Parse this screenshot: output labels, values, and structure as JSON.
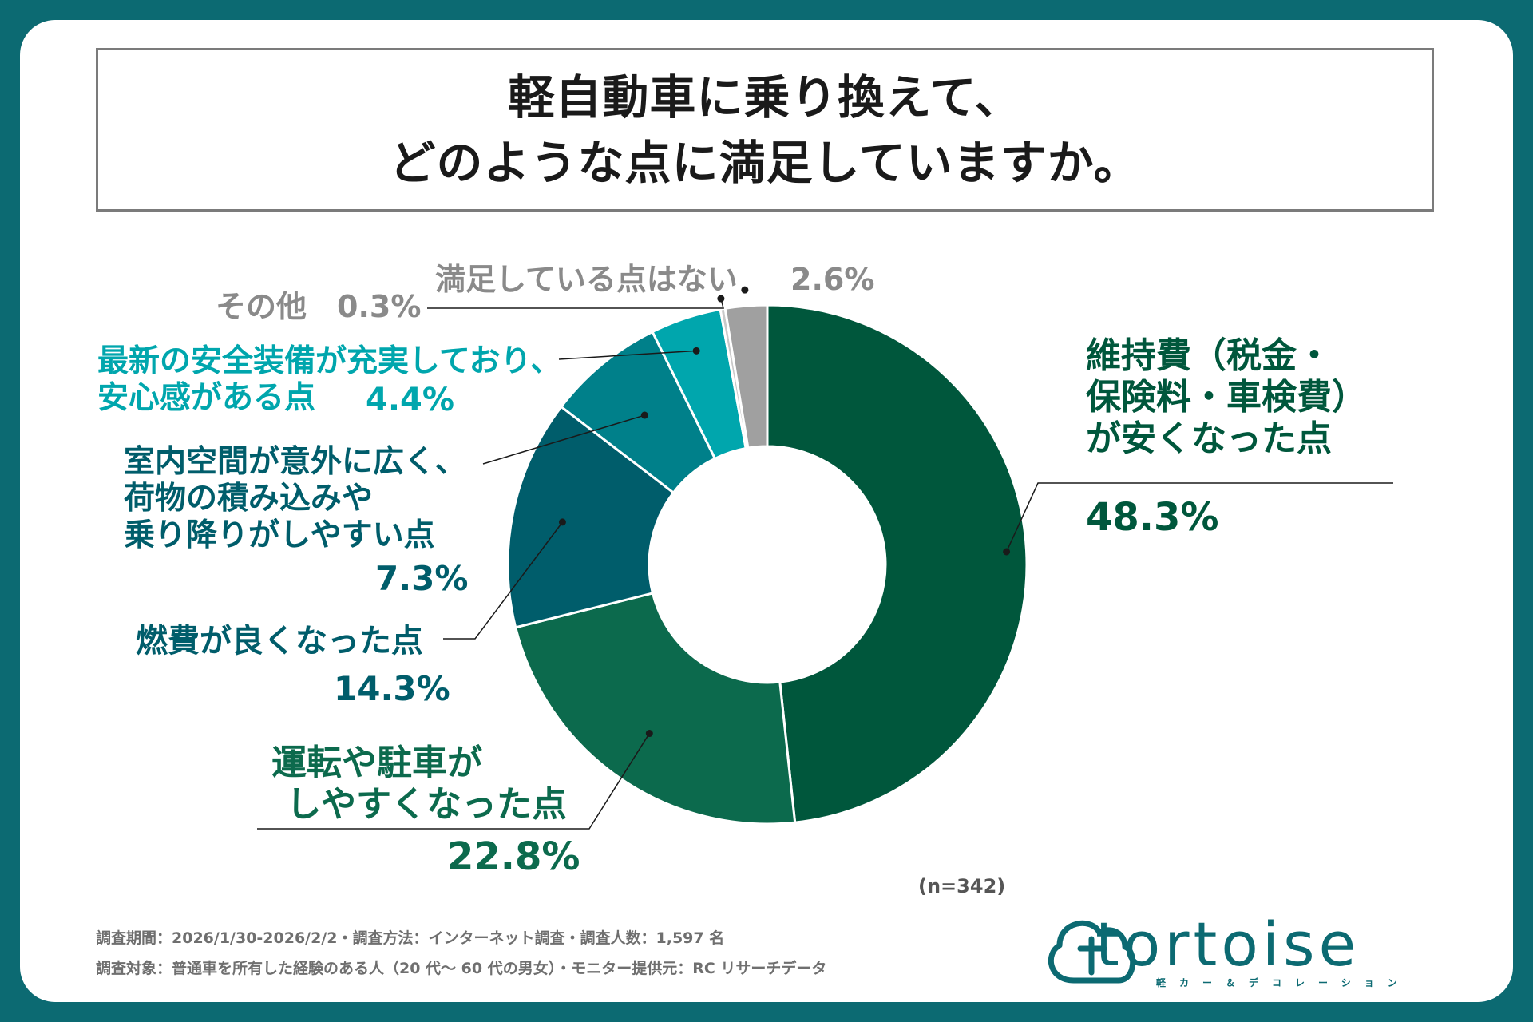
{
  "title": {
    "line1": "軽自動車に乗り換えて、",
    "line2": "どのような点に満足していますか。"
  },
  "chart_data": {
    "type": "pie",
    "variant": "donut",
    "title": "軽自動車に乗り換えて、どのような点に満足していますか。",
    "unit": "%",
    "slices": [
      {
        "label": "維持費（税金・保険料・車検費）が安くなった点",
        "value": 48.3,
        "color": "#00573c"
      },
      {
        "label": "運転や駐車がしやすくなった点",
        "value": 22.8,
        "color": "#0c6a4d"
      },
      {
        "label": "燃費が良くなった点",
        "value": 14.3,
        "color": "#005d6b"
      },
      {
        "label": "室内空間が意外に広く、荷物の積み込みや乗り降りがしやすい点",
        "value": 7.3,
        "color": "#00808a"
      },
      {
        "label": "最新の安全装備が充実しており、安心感がある点",
        "value": 4.4,
        "color": "#00a6ad"
      },
      {
        "label": "その他",
        "value": 0.3,
        "color": "#c9c9c9"
      },
      {
        "label": "満足している点はない",
        "value": 2.6,
        "color": "#a0a0a0"
      }
    ],
    "sample": "(n=342)"
  },
  "labels": {
    "s1": {
      "lines": [
        "維持費（税金・",
        "保険料・車検費）",
        "が安くなった点"
      ],
      "pct": "48.3%",
      "color": "#00573c"
    },
    "s2": {
      "lines": [
        "運転や駐車が",
        "しやすくなった点"
      ],
      "pct": "22.8%",
      "color": "#0c6a4d"
    },
    "s3": {
      "lines": [
        "燃費が良くなった点"
      ],
      "pct": "14.3%",
      "color": "#005d6b"
    },
    "s4": {
      "lines": [
        "室内空間が意外に広く、",
        "荷物の積み込みや",
        "乗り降りがしやすい点"
      ],
      "pct": "7.3%",
      "color": "#005d6b"
    },
    "s5": {
      "lines": [
        "最新の安全装備が充実しており、",
        "安心感がある点"
      ],
      "pct": "4.4%",
      "color": "#00a6ad"
    },
    "s6": {
      "text": "その他",
      "pct": "0.3%",
      "color": "#8a8a8a"
    },
    "s7": {
      "text": "満足している点はない",
      "pct": "2.6%",
      "color": "#8a8a8a"
    }
  },
  "footer": {
    "line1": "調査期間：2026/1/30-2026/2/2・調査方法：インターネット調査・調査人数：1,597 名",
    "line2": "調査対象：普通車を所有した経験のある人（20 代～ 60 代の男女）・モニター提供元：RC リサーチデータ"
  },
  "logo": {
    "name": "tortoise",
    "tagline": "軽カー＆デコレーション",
    "color": "#0c6a72"
  }
}
